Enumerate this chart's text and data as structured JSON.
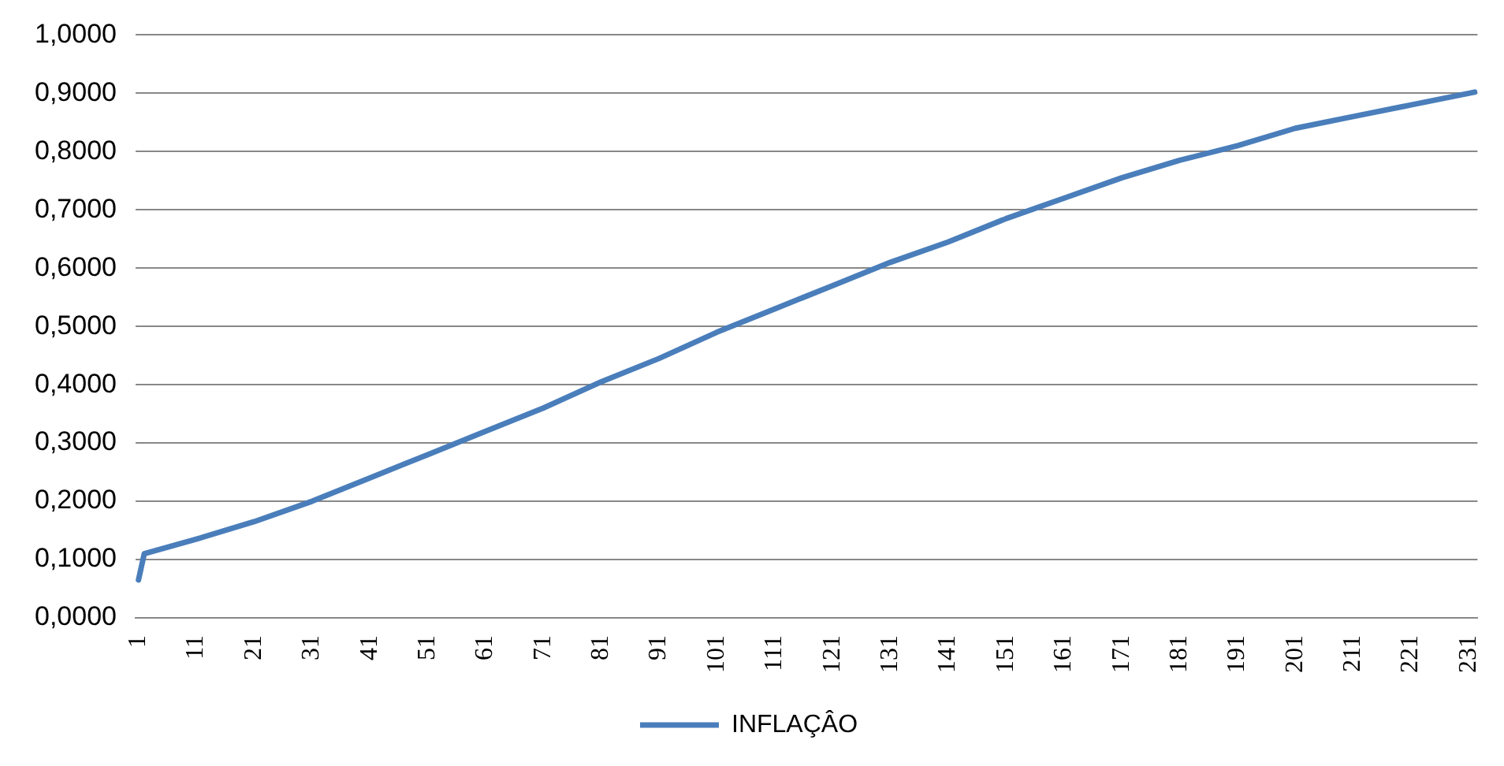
{
  "chart_data": {
    "type": "line",
    "x": [
      1,
      2,
      11,
      21,
      31,
      41,
      51,
      61,
      71,
      81,
      91,
      101,
      111,
      121,
      131,
      141,
      151,
      161,
      171,
      181,
      191,
      201,
      211,
      221,
      231,
      232
    ],
    "series": [
      {
        "name": "INFLAÇÂO",
        "color": "#4a7ebb",
        "values": [
          0.065,
          0.11,
          0.135,
          0.165,
          0.2,
          0.24,
          0.28,
          0.32,
          0.36,
          0.405,
          0.445,
          0.49,
          0.53,
          0.57,
          0.61,
          0.645,
          0.685,
          0.72,
          0.755,
          0.785,
          0.81,
          0.84,
          0.86,
          0.88,
          0.9,
          0.902
        ]
      }
    ],
    "xlim": [
      0.5,
      232.5
    ],
    "xticks": [
      1,
      11,
      21,
      31,
      41,
      51,
      61,
      71,
      81,
      91,
      101,
      111,
      121,
      131,
      141,
      151,
      161,
      171,
      181,
      191,
      201,
      211,
      221,
      231
    ],
    "ylim": [
      0,
      1
    ],
    "yticks": [
      {
        "value": 0,
        "label": "0,0000"
      },
      {
        "value": 0.1,
        "label": "0,1000"
      },
      {
        "value": 0.2,
        "label": "0,2000"
      },
      {
        "value": 0.3,
        "label": "0,3000"
      },
      {
        "value": 0.4,
        "label": "0,4000"
      },
      {
        "value": 0.5,
        "label": "0,5000"
      },
      {
        "value": 0.6,
        "label": "0,6000"
      },
      {
        "value": 0.7,
        "label": "0,7000"
      },
      {
        "value": 0.8,
        "label": "0,8000"
      },
      {
        "value": 0.9,
        "label": "0,9000"
      },
      {
        "value": 1,
        "label": "1,0000"
      }
    ],
    "grid": "y",
    "legend": "bottom",
    "marker": "none",
    "line_style": "solid"
  }
}
